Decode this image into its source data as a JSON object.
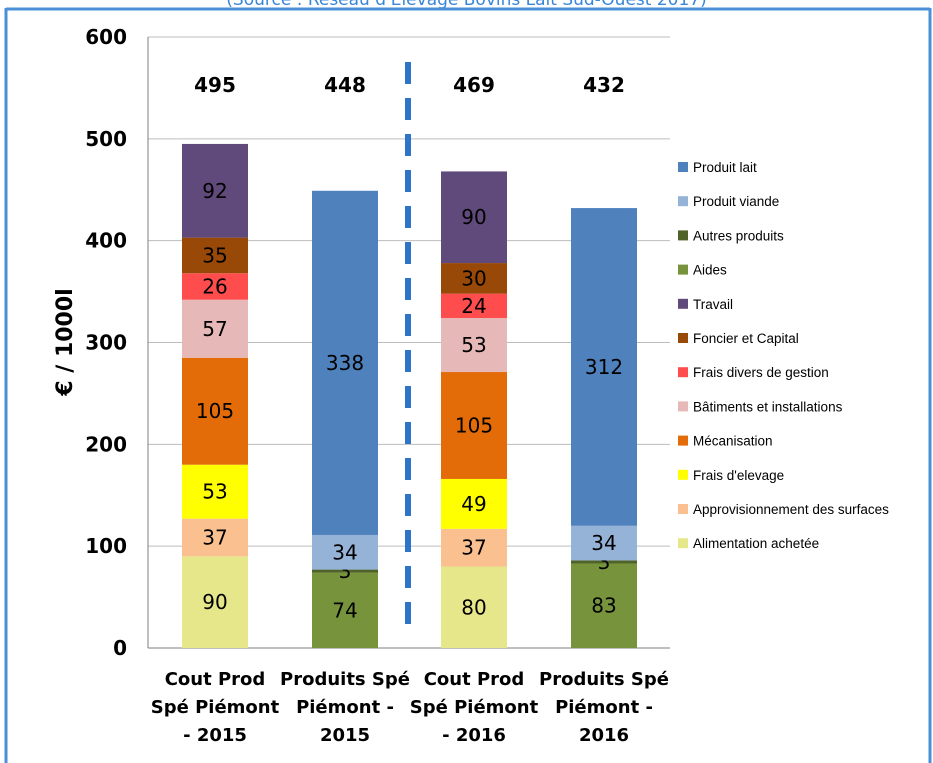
{
  "source_note": "(Source : Réseau d'Elevage Bovins Lait Sud-Ouest 2017)",
  "colors": {
    "frame": "#4a90d9",
    "grid": "#bdbdbd",
    "divider": "#2f75c7",
    "text": "#000000",
    "total_text": "#000000"
  },
  "chart_data": {
    "type": "bar",
    "stacked": true,
    "ylabel": "€ / 1000l",
    "ylim": [
      0,
      600
    ],
    "yticks": [
      0,
      100,
      200,
      300,
      400,
      500,
      600
    ],
    "grid": true,
    "legend_position": "right",
    "categories": [
      [
        "Cout Prod",
        "Spé Piémont",
        "- 2015"
      ],
      [
        "Produits Spé",
        "Piémont   -",
        "2015"
      ],
      [
        "Cout Prod",
        "Spé Piémont",
        "- 2016"
      ],
      [
        "Produits Spé",
        "Piémont   -",
        "2016"
      ]
    ],
    "totals": [
      495,
      448,
      469,
      432
    ],
    "series": [
      {
        "name": "Produit lait",
        "color": "#4f81bd",
        "values": [
          null,
          338,
          null,
          312
        ]
      },
      {
        "name": "Produit viande",
        "color": "#95b3d7",
        "values": [
          null,
          34,
          null,
          34
        ]
      },
      {
        "name": "Autres produits",
        "color": "#4f6228",
        "values": [
          null,
          3,
          null,
          3
        ]
      },
      {
        "name": "Aides",
        "color": "#77933c",
        "values": [
          null,
          74,
          null,
          83
        ]
      },
      {
        "name": "Travail",
        "color": "#604a7b",
        "values": [
          92,
          null,
          90,
          null
        ]
      },
      {
        "name": "Foncier et Capital",
        "color": "#984807",
        "values": [
          35,
          null,
          30,
          null
        ]
      },
      {
        "name": "Frais divers de gestion",
        "color": "#ff4d4d",
        "values": [
          26,
          null,
          24,
          null
        ]
      },
      {
        "name": "Bâtiments et installations",
        "color": "#e6b9b8",
        "values": [
          57,
          null,
          53,
          null
        ]
      },
      {
        "name": "Mécanisation",
        "color": "#e36c09",
        "values": [
          105,
          null,
          105,
          null
        ]
      },
      {
        "name": "Frais d'elevage",
        "color": "#ffff00",
        "values": [
          53,
          null,
          49,
          null
        ]
      },
      {
        "name": "Approvisionnement des surfaces",
        "color": "#fac090",
        "values": [
          37,
          null,
          37,
          null
        ]
      },
      {
        "name": "Alimentation achetée",
        "color": "#e6e68a",
        "values": [
          90,
          null,
          80,
          null
        ]
      }
    ],
    "stack_order_bottom_to_top": [
      "Alimentation achetée",
      "Approvisionnement des surfaces",
      "Frais d'elevage",
      "Mécanisation",
      "Bâtiments et installations",
      "Frais divers de gestion",
      "Foncier et Capital",
      "Travail",
      "Aides",
      "Autres produits",
      "Produit viande",
      "Produit lait"
    ]
  }
}
